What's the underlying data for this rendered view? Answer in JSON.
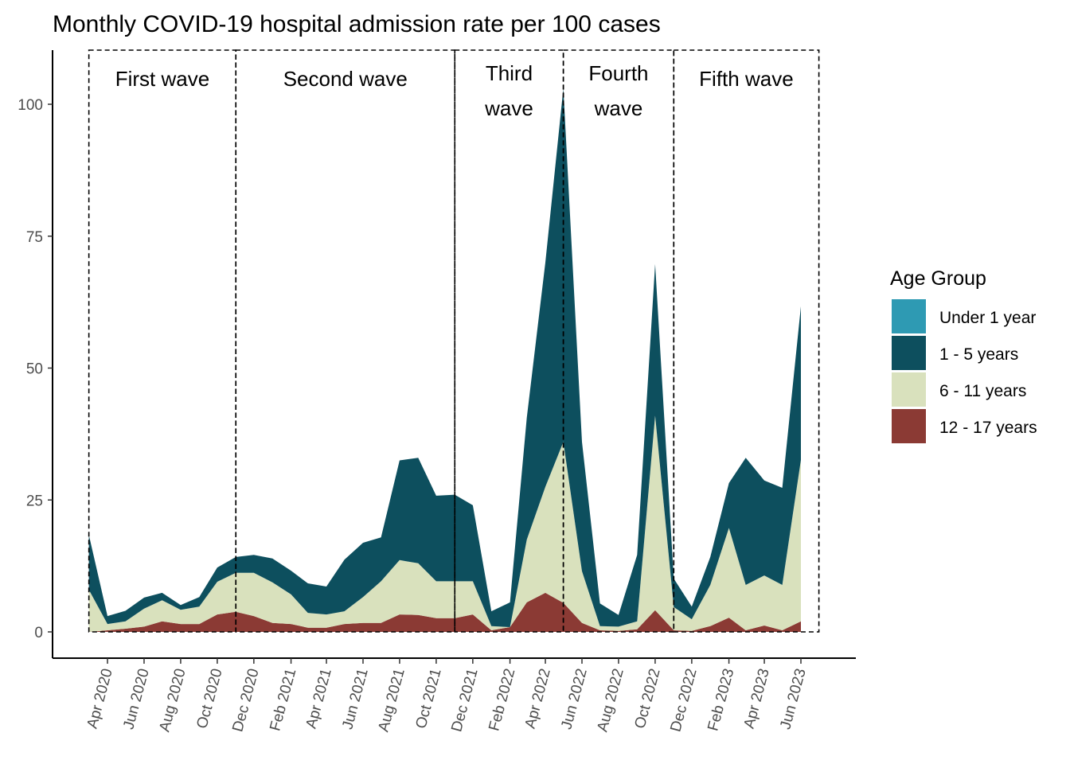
{
  "chart_data": {
    "type": "area",
    "stacked": true,
    "title": "Monthly COVID-19 hospital admission rate per 100 cases",
    "xlabel": "",
    "ylabel": "",
    "ylim": [
      0,
      110
    ],
    "yticks": [
      0,
      25,
      50,
      75,
      100
    ],
    "x": [
      "2020-03",
      "2020-04",
      "2020-05",
      "2020-06",
      "2020-07",
      "2020-08",
      "2020-09",
      "2020-10",
      "2020-11",
      "2020-12",
      "2021-01",
      "2021-02",
      "2021-03",
      "2021-04",
      "2021-05",
      "2021-06",
      "2021-07",
      "2021-08",
      "2021-09",
      "2021-10",
      "2021-11",
      "2021-12",
      "2022-01",
      "2022-02",
      "2022-03",
      "2022-04",
      "2022-05",
      "2022-06",
      "2022-07",
      "2022-08",
      "2022-09",
      "2022-10",
      "2022-11",
      "2022-12",
      "2023-01",
      "2023-02",
      "2023-03",
      "2023-04",
      "2023-05",
      "2023-06"
    ],
    "xticks": [
      {
        "date": "2020-04",
        "label": "Apr 2020"
      },
      {
        "date": "2020-06",
        "label": "Jun 2020"
      },
      {
        "date": "2020-08",
        "label": "Aug 2020"
      },
      {
        "date": "2020-10",
        "label": "Oct 2020"
      },
      {
        "date": "2020-12",
        "label": "Dec 2020"
      },
      {
        "date": "2021-02",
        "label": "Feb 2021"
      },
      {
        "date": "2021-04",
        "label": "Apr 2021"
      },
      {
        "date": "2021-06",
        "label": "Jun 2021"
      },
      {
        "date": "2021-08",
        "label": "Aug 2021"
      },
      {
        "date": "2021-10",
        "label": "Oct 2021"
      },
      {
        "date": "2021-12",
        "label": "Dec 2021"
      },
      {
        "date": "2022-02",
        "label": "Feb 2022"
      },
      {
        "date": "2022-04",
        "label": "Apr 2022"
      },
      {
        "date": "2022-06",
        "label": "Jun 2022"
      },
      {
        "date": "2022-08",
        "label": "Aug 2022"
      },
      {
        "date": "2022-10",
        "label": "Oct 2022"
      },
      {
        "date": "2022-12",
        "label": "Dec 2022"
      },
      {
        "date": "2023-02",
        "label": "Feb 2023"
      },
      {
        "date": "2023-04",
        "label": "Apr 2023"
      },
      {
        "date": "2023-06",
        "label": "Jun 2023"
      }
    ],
    "xlim": [
      "2020-01-20",
      "2023-08-15"
    ],
    "series": [
      {
        "name": "12 - 17 years",
        "color": "#8b3a34",
        "values": [
          0.0,
          0.3,
          0.6,
          1.0,
          2.0,
          1.5,
          1.5,
          3.3,
          3.8,
          3.0,
          1.7,
          1.5,
          0.8,
          0.8,
          1.5,
          1.7,
          1.7,
          3.3,
          3.2,
          2.6,
          2.6,
          3.3,
          0.3,
          0.9,
          5.6,
          7.4,
          5.5,
          1.7,
          0.3,
          0.2,
          0.5,
          4.1,
          0.3,
          0.2,
          1.1,
          2.7,
          0.3,
          1.2,
          0.3,
          2.0
        ]
      },
      {
        "name": "6 - 11 years",
        "color": "#d9e1bd",
        "values": [
          8.0,
          1.2,
          1.4,
          3.4,
          4.0,
          2.7,
          3.3,
          6.2,
          7.4,
          8.2,
          7.7,
          5.6,
          2.8,
          2.5,
          2.4,
          4.9,
          7.9,
          10.3,
          9.8,
          7.0,
          7.0,
          6.3,
          0.8,
          0.0,
          11.9,
          20.1,
          30.5,
          9.8,
          0.8,
          0.8,
          1.5,
          36.9,
          4.4,
          2.2,
          7.8,
          17.0,
          8.6,
          9.5,
          8.6,
          30.6
        ]
      },
      {
        "name": "1 - 5 years",
        "color": "#0d4f5e",
        "values": [
          10.4,
          1.5,
          2.0,
          2.1,
          1.4,
          0.9,
          1.8,
          2.7,
          3.0,
          3.4,
          4.5,
          4.5,
          5.6,
          5.3,
          9.8,
          10.3,
          8.3,
          18.9,
          20.0,
          16.2,
          16.4,
          14.4,
          2.8,
          4.7,
          23.1,
          42.5,
          67.0,
          24.5,
          4.3,
          2.2,
          12.6,
          28.7,
          5.4,
          2.4,
          5.3,
          8.5,
          24.1,
          18.0,
          18.4,
          29.1
        ]
      },
      {
        "name": "Under 1 year",
        "color": "#2e9ab3",
        "values": [
          0,
          0,
          0,
          0,
          0,
          0,
          0,
          0,
          0,
          0,
          0,
          0,
          0,
          0,
          0,
          0,
          0,
          0,
          0,
          0,
          0,
          0,
          0,
          0,
          0,
          0,
          0,
          0,
          0,
          0,
          0,
          0,
          0,
          0,
          0,
          0,
          0,
          0,
          0,
          0
        ]
      }
    ],
    "waves": [
      {
        "label_lines": [
          "First wave"
        ],
        "start": "2020-03-01",
        "end": "2020-11-01"
      },
      {
        "label_lines": [
          "Second wave"
        ],
        "start": "2020-11-01",
        "end": "2021-11-01"
      },
      {
        "label_lines": [
          "Third",
          "wave"
        ],
        "start": "2021-11-01",
        "end": "2022-05-01"
      },
      {
        "label_lines": [
          "Fourth",
          "wave"
        ],
        "start": "2022-05-01",
        "end": "2022-11-01"
      },
      {
        "label_lines": [
          "Fifth wave"
        ],
        "start": "2022-11-01",
        "end": "2023-07-01"
      }
    ],
    "wave_box_top_value": 110,
    "legend": {
      "title": "Age Group",
      "position": "right",
      "entries": [
        {
          "label": "Under 1 year",
          "color": "#2e9ab3"
        },
        {
          "label": "1 - 5 years",
          "color": "#0d4f5e"
        },
        {
          "label": "6 - 11 years",
          "color": "#d9e1bd"
        },
        {
          "label": "12 - 17 years",
          "color": "#8b3a34"
        }
      ]
    },
    "grid": false
  }
}
